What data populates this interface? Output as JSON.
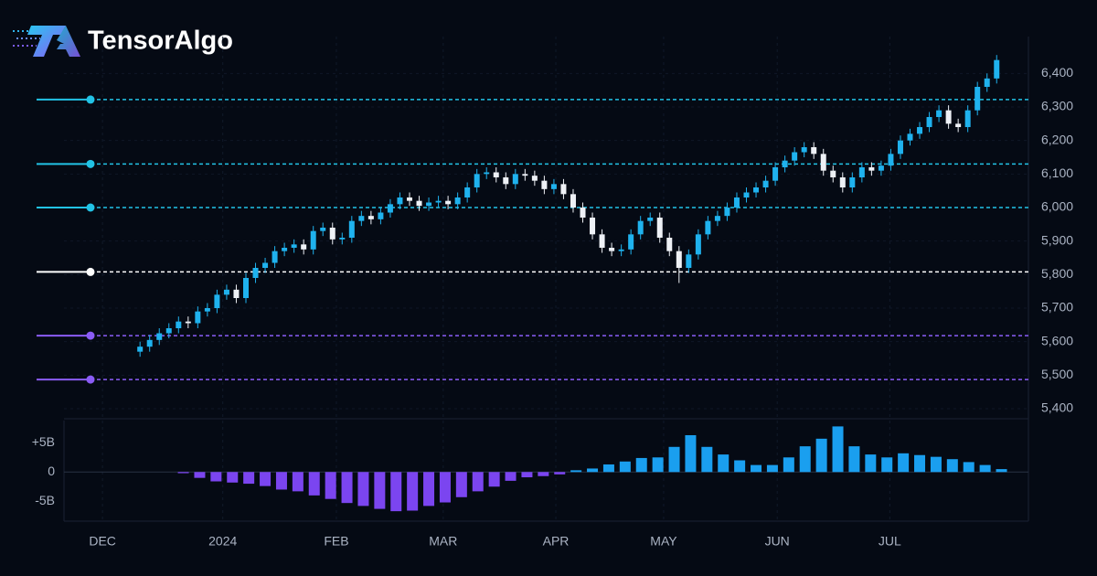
{
  "header": {
    "brand": "TensorAlgo"
  },
  "chart_data": [
    {
      "type": "candlestick",
      "open": [
        5570,
        5585,
        5605,
        5625,
        5640,
        5660,
        5655,
        5690,
        5700,
        5740,
        5755,
        5730,
        5790,
        5820,
        5835,
        5870,
        5880,
        5890,
        5875,
        5930,
        5940,
        5905,
        5910,
        5960,
        5975,
        5965,
        5985,
        6010,
        6030,
        6020,
        6005,
        6015,
        6020,
        6010,
        6030,
        6060,
        6100,
        6105,
        6090,
        6070,
        6100,
        6095,
        6080,
        6055,
        6070,
        6040,
        6000,
        5970,
        5920,
        5880,
        5870,
        5875,
        5920,
        5960,
        5970,
        5910,
        5870,
        5820,
        5860,
        5920,
        5960,
        5975,
        6000,
        6030,
        6045,
        6060,
        6080,
        6120,
        6140,
        6165,
        6180,
        6160,
        6110,
        6090,
        6060,
        6090,
        6120,
        6110,
        6125,
        6160,
        6200,
        6220,
        6240,
        6270,
        6290,
        6250,
        6240,
        6290,
        6360,
        6385
      ],
      "high": [
        5600,
        5620,
        5640,
        5655,
        5675,
        5675,
        5705,
        5715,
        5755,
        5770,
        5770,
        5805,
        5835,
        5850,
        5885,
        5895,
        5905,
        5905,
        5945,
        5955,
        5955,
        5925,
        5975,
        5990,
        5990,
        6000,
        6025,
        6045,
        6045,
        6035,
        6030,
        6035,
        6035,
        6045,
        6075,
        6115,
        6120,
        6120,
        6105,
        6115,
        6115,
        6110,
        6095,
        6085,
        6085,
        6055,
        6015,
        5985,
        5935,
        5895,
        5890,
        5935,
        5975,
        5985,
        5985,
        5925,
        5885,
        5875,
        5935,
        5975,
        5990,
        6015,
        6045,
        6060,
        6075,
        6095,
        6135,
        6155,
        6180,
        6195,
        6195,
        6175,
        6125,
        6105,
        6105,
        6135,
        6135,
        6140,
        6175,
        6215,
        6235,
        6255,
        6285,
        6305,
        6305,
        6265,
        6305,
        6375,
        6400,
        6455
      ],
      "low": [
        5555,
        5570,
        5590,
        5610,
        5625,
        5640,
        5640,
        5675,
        5685,
        5725,
        5715,
        5715,
        5775,
        5805,
        5820,
        5855,
        5865,
        5860,
        5860,
        5915,
        5890,
        5890,
        5895,
        5945,
        5950,
        5950,
        5970,
        5995,
        6005,
        5990,
        5990,
        6000,
        5995,
        5995,
        6015,
        6045,
        6085,
        6075,
        6055,
        6055,
        6080,
        6065,
        6040,
        6040,
        6025,
        5985,
        5955,
        5905,
        5865,
        5855,
        5855,
        5860,
        5905,
        5945,
        5895,
        5855,
        5775,
        5805,
        5845,
        5905,
        5945,
        5960,
        5985,
        6015,
        6030,
        6045,
        6065,
        6105,
        6125,
        6150,
        6145,
        6095,
        6075,
        6045,
        6045,
        6075,
        6095,
        6095,
        6110,
        6145,
        6185,
        6205,
        6225,
        6255,
        6235,
        6225,
        6225,
        6275,
        6345,
        6370
      ],
      "close": [
        5585,
        5605,
        5625,
        5640,
        5660,
        5655,
        5690,
        5700,
        5740,
        5755,
        5730,
        5790,
        5820,
        5835,
        5870,
        5880,
        5890,
        5875,
        5930,
        5940,
        5905,
        5910,
        5960,
        5975,
        5965,
        5985,
        6010,
        6030,
        6020,
        6005,
        6015,
        6020,
        6010,
        6030,
        6060,
        6100,
        6105,
        6090,
        6070,
        6100,
        6095,
        6080,
        6055,
        6070,
        6040,
        6000,
        5970,
        5920,
        5880,
        5870,
        5875,
        5920,
        5960,
        5970,
        5910,
        5870,
        5820,
        5860,
        5920,
        5960,
        5975,
        6000,
        6030,
        6045,
        6060,
        6080,
        6120,
        6140,
        6165,
        6180,
        6160,
        6110,
        6090,
        6060,
        6090,
        6120,
        6110,
        6125,
        6160,
        6200,
        6220,
        6240,
        6270,
        6290,
        6250,
        6240,
        6290,
        6360,
        6385,
        6440
      ],
      "up_color": "#1fb2ee",
      "down_color": "#eef1f6",
      "ylim": [
        5370,
        6510
      ],
      "yticks": [
        {
          "value": 5400,
          "label": "5,400"
        },
        {
          "value": 5500,
          "label": "5,500"
        },
        {
          "value": 5600,
          "label": "5,600"
        },
        {
          "value": 5700,
          "label": "5,700"
        },
        {
          "value": 5800,
          "label": "5,800"
        },
        {
          "value": 5900,
          "label": "5,900"
        },
        {
          "value": 6000,
          "label": "6,000"
        },
        {
          "value": 6100,
          "label": "6,100"
        },
        {
          "value": 6200,
          "label": "6,200"
        },
        {
          "value": 6300,
          "label": "6,300"
        },
        {
          "value": 6400,
          "label": "6,400"
        }
      ],
      "grid": true,
      "levels": [
        {
          "value": 6322,
          "color": "#22c3e6"
        },
        {
          "value": 6130,
          "color": "#22c3e6"
        },
        {
          "value": 6000,
          "color": "#22c3e6"
        },
        {
          "value": 5808,
          "color": "#ffffff"
        },
        {
          "value": 5618,
          "color": "#8b5cf6"
        },
        {
          "value": 5487,
          "color": "#8b5cf6"
        }
      ]
    },
    {
      "type": "bar",
      "x": [
        4.5,
        6.2,
        7.9,
        9.6,
        11.3,
        13.0,
        14.7,
        16.4,
        18.1,
        19.8,
        21.5,
        23.2,
        24.9,
        26.6,
        28.3,
        30.0,
        31.7,
        33.4,
        35.1,
        36.8,
        38.5,
        40.2,
        41.9,
        43.6,
        45.3,
        47.0,
        48.7,
        50.4,
        52.1,
        53.8,
        55.5,
        57.2,
        58.9,
        60.6,
        62.3,
        64.0,
        65.7,
        67.4,
        69.1,
        70.8,
        72.5,
        74.2,
        75.9,
        77.6,
        79.3,
        81.0,
        82.7,
        84.4,
        86.1,
        87.8,
        89.5
      ],
      "values": [
        -0.2,
        -1.0,
        -1.6,
        -1.8,
        -2.0,
        -2.4,
        -3.0,
        -3.3,
        -4.0,
        -4.6,
        -5.3,
        -5.8,
        -6.3,
        -6.7,
        -6.6,
        -5.8,
        -5.2,
        -4.3,
        -3.3,
        -2.5,
        -1.5,
        -0.9,
        -0.7,
        -0.4,
        0.3,
        0.6,
        1.3,
        1.8,
        2.4,
        2.5,
        4.3,
        6.3,
        4.3,
        3.0,
        2.0,
        1.2,
        1.2,
        2.5,
        4.4,
        5.7,
        7.8,
        4.4,
        3.0,
        2.5,
        3.2,
        2.9,
        2.6,
        2.2,
        1.7,
        1.2,
        0.5
      ],
      "positive_color": "#1a9fef",
      "negative_color": "#7b45f0",
      "xlim": [
        -7.9,
        92.3
      ],
      "xticks": [
        {
          "value": -3.9,
          "label": "DEC"
        },
        {
          "value": 8.6,
          "label": "2024"
        },
        {
          "value": 20.4,
          "label": "FEB"
        },
        {
          "value": 31.5,
          "label": "MAR"
        },
        {
          "value": 43.2,
          "label": "APR"
        },
        {
          "value": 54.4,
          "label": "MAY"
        },
        {
          "value": 66.2,
          "label": "JUN"
        },
        {
          "value": 77.9,
          "label": "JUL"
        }
      ],
      "ylim": [
        -8.4,
        8.8
      ],
      "yticks": [
        {
          "value": 5,
          "label": "+5B"
        },
        0,
        {
          "value": -5,
          "label": "-5B"
        }
      ]
    }
  ]
}
